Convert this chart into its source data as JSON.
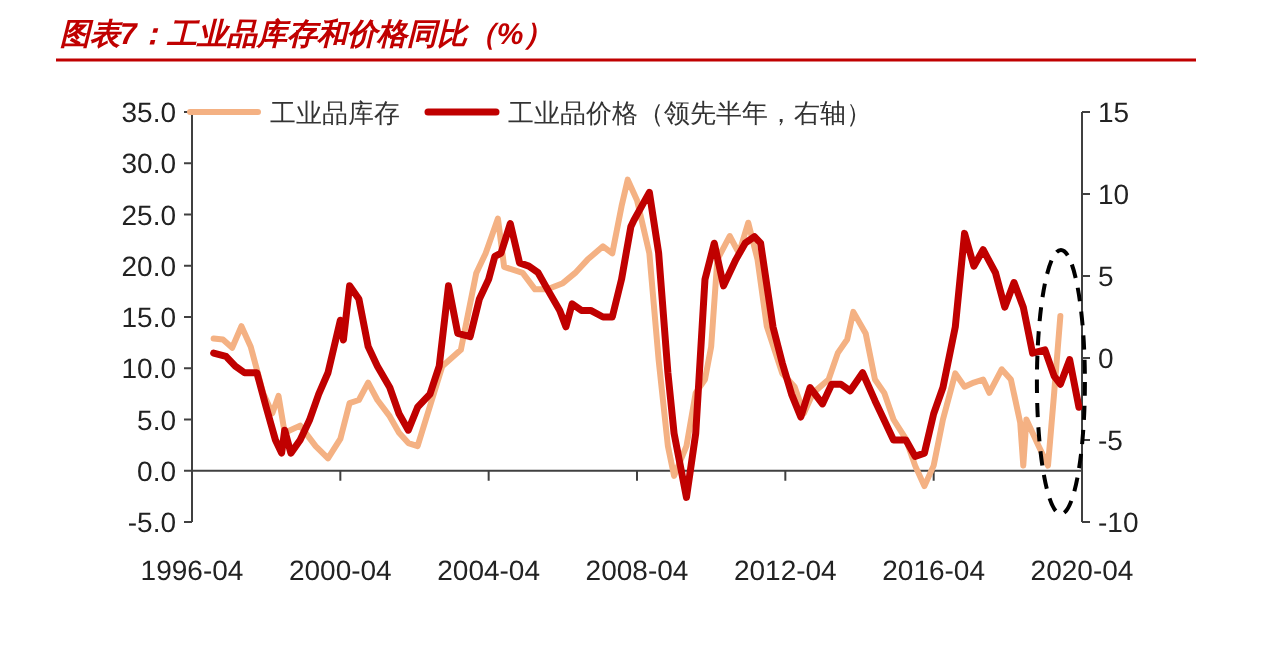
{
  "chart_data": {
    "type": "line",
    "title": "图表7：工业品库存和价格同比（%）",
    "legend": "top",
    "line_style": "solid",
    "xlim": [
      "1996-04",
      "2020-04"
    ],
    "xticks": [
      {
        "value": "1996-04",
        "label": "1996-04"
      },
      {
        "value": "2000-04",
        "label": "2000-04"
      },
      {
        "value": "2004-04",
        "label": "2004-04"
      },
      {
        "value": "2008-04",
        "label": "2008-04"
      },
      {
        "value": "2012-04",
        "label": "2012-04"
      },
      {
        "value": "2016-04",
        "label": "2016-04"
      },
      {
        "value": "2020-04",
        "label": "2020-04"
      }
    ],
    "ylim": [
      -5,
      35
    ],
    "yticks": [
      {
        "value": -5,
        "label": "-5.0"
      },
      {
        "value": 0,
        "label": "0.0"
      },
      {
        "value": 5,
        "label": "5.0"
      },
      {
        "value": 10,
        "label": "10.0"
      },
      {
        "value": 15,
        "label": "15.0"
      },
      {
        "value": 20,
        "label": "20.0"
      },
      {
        "value": 25,
        "label": "25.0"
      },
      {
        "value": 30,
        "label": "30.0"
      },
      {
        "value": 35,
        "label": "35.0"
      }
    ],
    "y2lim": [
      -10,
      15
    ],
    "y2ticks": [
      -10,
      -5,
      0,
      5,
      10,
      15
    ],
    "series": [
      {
        "name": "工业品库存",
        "color": "#f4b183",
        "x": [
          "1996-11",
          "1997-02",
          "1997-05",
          "1997-08",
          "1997-11",
          "1998-03",
          "1998-06",
          "1998-08",
          "1998-10",
          "1999-03",
          "1999-08",
          "1999-12",
          "2000-04",
          "2000-07",
          "2000-10",
          "2001-01",
          "2001-04",
          "2001-08",
          "2001-11",
          "2002-02",
          "2002-05",
          "2002-09",
          "2003-01",
          "2003-07",
          "2003-12",
          "2004-03",
          "2004-07",
          "2004-09",
          "2005-03",
          "2005-07",
          "2005-11",
          "2006-04",
          "2006-08",
          "2006-12",
          "2007-05",
          "2007-08",
          "2007-11",
          "2008-01",
          "2008-04",
          "2008-08",
          "2008-11",
          "2009-02",
          "2009-04",
          "2009-08",
          "2009-11",
          "2010-02",
          "2010-04",
          "2010-06",
          "2010-10",
          "2011-01",
          "2011-04",
          "2011-07",
          "2011-10",
          "2012-03",
          "2012-07",
          "2012-10",
          "2013-01",
          "2013-06",
          "2013-09",
          "2013-12",
          "2014-02",
          "2014-06",
          "2014-09",
          "2014-12",
          "2015-03",
          "2015-07",
          "2015-10",
          "2016-01",
          "2016-04",
          "2016-07",
          "2016-11",
          "2017-02",
          "2017-05",
          "2017-08",
          "2017-10",
          "2018-02",
          "2018-05",
          "2018-08",
          "2018-09",
          "2018-10",
          "2019-02",
          "2019-05",
          "2019-07",
          "2019-09"
        ],
        "values": [
          12.9,
          12.8,
          12.0,
          14.1,
          12.1,
          7.6,
          5.6,
          7.3,
          3.7,
          4.4,
          2.4,
          1.2,
          3.1,
          6.6,
          6.9,
          8.6,
          6.9,
          5.3,
          3.7,
          2.7,
          2.4,
          6.3,
          10.2,
          11.8,
          19.3,
          21.2,
          24.6,
          19.9,
          19.3,
          17.7,
          17.7,
          18.3,
          19.3,
          20.6,
          21.9,
          21.2,
          25.8,
          28.4,
          26.4,
          21.2,
          10.8,
          2.4,
          -0.5,
          2.4,
          7.6,
          8.9,
          12.1,
          20.6,
          22.9,
          21.2,
          24.2,
          20.6,
          14.1,
          9.5,
          8.2,
          5.6,
          7.6,
          8.9,
          11.5,
          12.8,
          15.5,
          13.4,
          8.9,
          7.6,
          5.0,
          3.1,
          0.5,
          -1.5,
          0.5,
          5.0,
          9.5,
          8.2,
          8.6,
          8.9,
          7.6,
          9.9,
          8.9,
          4.7,
          0.5,
          5.0,
          2.4,
          0.5,
          7.6,
          15.1
        ]
      },
      {
        "name": "工业品价格（领先半年，右轴）",
        "color": "#c00000",
        "axis": "y2",
        "x": [
          "1996-11",
          "1997-03",
          "1997-06",
          "1997-09",
          "1998-01",
          "1998-04",
          "1998-07",
          "1998-09",
          "1998-10",
          "1998-12",
          "1999-03",
          "1999-06",
          "1999-09",
          "1999-12",
          "2000-04",
          "2000-05",
          "2000-07",
          "2000-10",
          "2001-01",
          "2001-04",
          "2001-08",
          "2001-11",
          "2002-02",
          "2002-05",
          "2002-09",
          "2002-12",
          "2003-03",
          "2003-06",
          "2003-10",
          "2004-01",
          "2004-04",
          "2004-06",
          "2004-08",
          "2004-11",
          "2005-02",
          "2005-05",
          "2005-08",
          "2005-11",
          "2006-03",
          "2006-05",
          "2006-07",
          "2006-10",
          "2007-01",
          "2007-05",
          "2007-08",
          "2007-11",
          "2008-02",
          "2008-03",
          "2008-08",
          "2008-11",
          "2009-02",
          "2009-04",
          "2009-08",
          "2009-11",
          "2010-02",
          "2010-05",
          "2010-08",
          "2010-12",
          "2011-03",
          "2011-06",
          "2011-08",
          "2011-12",
          "2012-03",
          "2012-06",
          "2012-09",
          "2012-12",
          "2013-04",
          "2013-07",
          "2013-10",
          "2014-01",
          "2014-05",
          "2014-09",
          "2014-12",
          "2015-03",
          "2015-07",
          "2015-10",
          "2016-01",
          "2016-04",
          "2016-07",
          "2016-11",
          "2017-02",
          "2017-05",
          "2017-08",
          "2017-12",
          "2018-03",
          "2018-06",
          "2018-09",
          "2018-12",
          "2019-04",
          "2019-07",
          "2019-09",
          "2019-12",
          "2020-03"
        ],
        "values": [
          0.3,
          0.1,
          -0.5,
          -0.9,
          -0.9,
          -3.0,
          -5.0,
          -5.8,
          -4.4,
          -5.8,
          -5.0,
          -3.8,
          -2.2,
          -0.9,
          2.3,
          1.1,
          4.4,
          3.6,
          0.7,
          -0.5,
          -1.8,
          -3.4,
          -4.4,
          -3.0,
          -2.2,
          -0.5,
          4.4,
          1.5,
          1.3,
          3.6,
          4.8,
          6.2,
          6.4,
          8.2,
          5.8,
          5.6,
          5.2,
          4.2,
          2.9,
          1.9,
          3.3,
          2.9,
          2.9,
          2.5,
          2.5,
          4.8,
          8.0,
          8.4,
          10.1,
          6.4,
          -0.9,
          -4.6,
          -8.5,
          -4.6,
          4.8,
          7.0,
          4.4,
          6.0,
          7.0,
          7.4,
          7.0,
          1.9,
          -0.3,
          -2.2,
          -3.6,
          -1.8,
          -2.8,
          -1.6,
          -1.6,
          -2.0,
          -0.9,
          -2.6,
          -3.8,
          -5.0,
          -5.0,
          -6.0,
          -5.8,
          -3.4,
          -1.8,
          1.9,
          7.6,
          5.6,
          6.6,
          5.2,
          3.1,
          4.6,
          3.1,
          0.3,
          0.5,
          -1.1,
          -1.6,
          -0.1,
          -3.0
        ]
      }
    ]
  }
}
